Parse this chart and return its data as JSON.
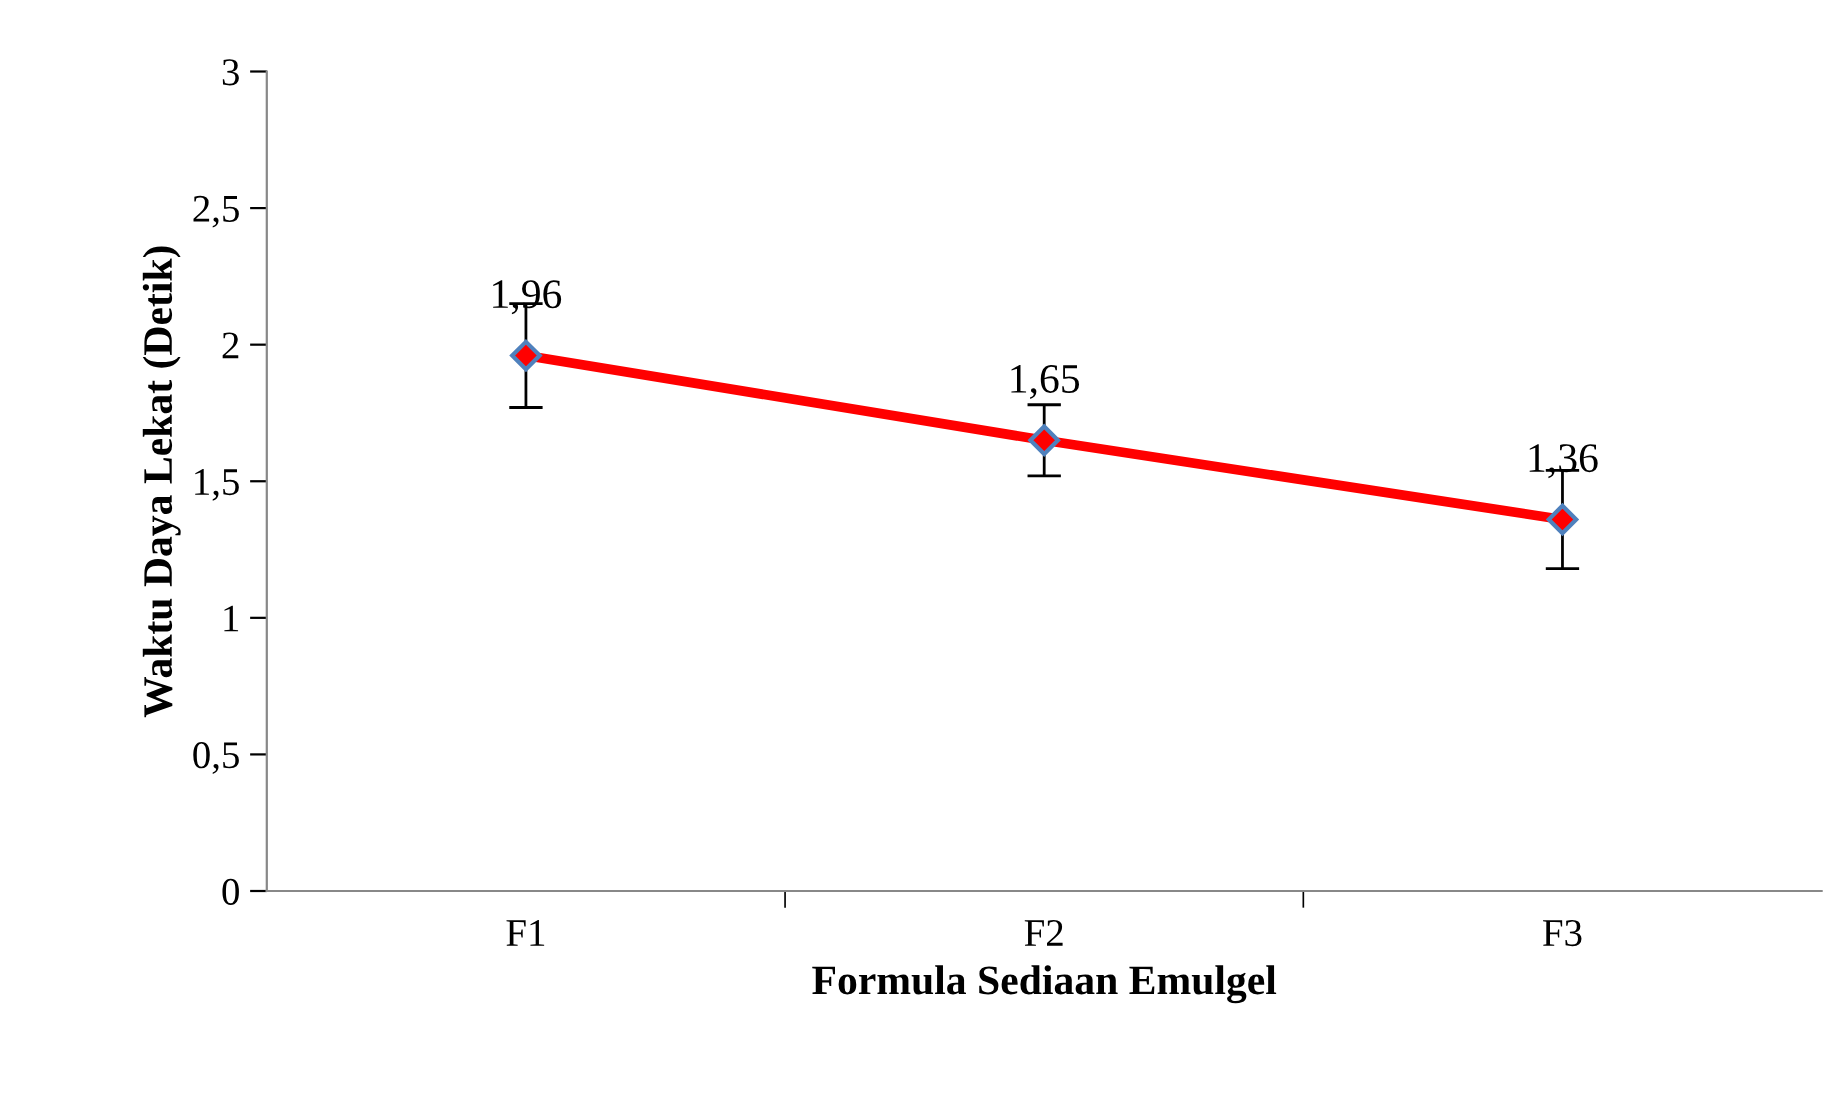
{
  "chart_data": {
    "type": "line",
    "xlabel": "Formula Sediaan Emulgel",
    "ylabel": "Waktu Daya Lekat (Detik)",
    "categories": [
      "F1",
      "F2",
      "F3"
    ],
    "series": [
      {
        "color": "#ff0000",
        "values": [
          1.96,
          1.65,
          1.36
        ],
        "errors": [
          0.19,
          0.13,
          0.18
        ],
        "value_labels": [
          "1,96",
          "1,65",
          "1,36"
        ]
      }
    ],
    "ylim": [
      0,
      3
    ],
    "yticks": [
      0,
      {
        "value": 0.5,
        "label": "0,5"
      },
      1,
      {
        "value": 1.5,
        "label": "1,5"
      },
      2,
      {
        "value": 2.5,
        "label": "2,5"
      },
      3
    ],
    "marker": "diamond",
    "line_style": "solid",
    "grid": false,
    "legend": false
  }
}
